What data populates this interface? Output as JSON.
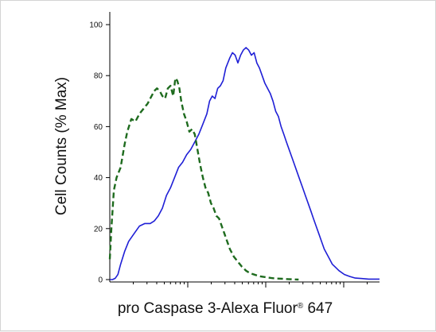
{
  "chart_data": {
    "type": "line",
    "title": "",
    "xlabel": "pro Caspase 3-Alexa Fluor",
    "xlabel_superscript": "®",
    "xlabel_suffix": " 647",
    "ylabel": "Cell Counts (% Max)",
    "ylim": [
      0,
      100
    ],
    "xlim": [
      0,
      1
    ],
    "x_scale": "log (unlabeled decades)",
    "y_ticks": [
      "0",
      "20",
      "40",
      "60",
      "80",
      "100"
    ],
    "grid": false,
    "legend": "none",
    "series": [
      {
        "color": "#1f1fd6",
        "line_style": "solid",
        "points": [
          [
            0.0,
            0
          ],
          [
            0.01,
            0
          ],
          [
            0.02,
            0.5
          ],
          [
            0.03,
            2
          ],
          [
            0.04,
            6
          ],
          [
            0.055,
            11
          ],
          [
            0.07,
            15
          ],
          [
            0.09,
            18
          ],
          [
            0.11,
            21
          ],
          [
            0.13,
            22
          ],
          [
            0.15,
            22
          ],
          [
            0.165,
            23
          ],
          [
            0.18,
            25
          ],
          [
            0.195,
            28
          ],
          [
            0.21,
            33
          ],
          [
            0.225,
            36
          ],
          [
            0.24,
            40
          ],
          [
            0.255,
            44
          ],
          [
            0.27,
            46
          ],
          [
            0.285,
            49
          ],
          [
            0.3,
            51
          ],
          [
            0.315,
            54
          ],
          [
            0.33,
            57
          ],
          [
            0.345,
            61
          ],
          [
            0.36,
            65
          ],
          [
            0.37,
            70
          ],
          [
            0.38,
            72
          ],
          [
            0.39,
            71
          ],
          [
            0.4,
            75
          ],
          [
            0.41,
            76
          ],
          [
            0.42,
            78
          ],
          [
            0.43,
            83
          ],
          [
            0.445,
            87
          ],
          [
            0.455,
            89
          ],
          [
            0.465,
            88
          ],
          [
            0.475,
            85
          ],
          [
            0.485,
            88
          ],
          [
            0.495,
            90
          ],
          [
            0.505,
            91
          ],
          [
            0.515,
            90
          ],
          [
            0.525,
            88
          ],
          [
            0.535,
            89
          ],
          [
            0.545,
            85
          ],
          [
            0.555,
            83
          ],
          [
            0.565,
            80
          ],
          [
            0.575,
            77
          ],
          [
            0.585,
            75
          ],
          [
            0.595,
            73
          ],
          [
            0.605,
            70
          ],
          [
            0.615,
            66
          ],
          [
            0.625,
            64
          ],
          [
            0.635,
            60
          ],
          [
            0.645,
            57
          ],
          [
            0.655,
            54
          ],
          [
            0.665,
            51
          ],
          [
            0.675,
            48
          ],
          [
            0.685,
            45
          ],
          [
            0.695,
            42
          ],
          [
            0.705,
            39
          ],
          [
            0.715,
            36
          ],
          [
            0.725,
            33
          ],
          [
            0.735,
            30
          ],
          [
            0.745,
            27
          ],
          [
            0.755,
            24
          ],
          [
            0.765,
            21
          ],
          [
            0.775,
            18
          ],
          [
            0.785,
            15
          ],
          [
            0.795,
            12
          ],
          [
            0.805,
            10
          ],
          [
            0.815,
            8
          ],
          [
            0.825,
            6
          ],
          [
            0.835,
            5
          ],
          [
            0.85,
            3.5
          ],
          [
            0.87,
            2
          ],
          [
            0.89,
            1.2
          ],
          [
            0.91,
            0.6
          ],
          [
            0.935,
            0.4
          ],
          [
            0.96,
            0.2
          ],
          [
            1.0,
            0.2
          ]
        ]
      },
      {
        "color": "#1e6b1e",
        "line_style": "dashed",
        "points": [
          [
            0.0,
            8
          ],
          [
            0.006,
            20
          ],
          [
            0.015,
            35
          ],
          [
            0.025,
            40
          ],
          [
            0.04,
            44
          ],
          [
            0.055,
            53
          ],
          [
            0.065,
            58
          ],
          [
            0.08,
            63
          ],
          [
            0.095,
            62
          ],
          [
            0.11,
            65
          ],
          [
            0.125,
            67
          ],
          [
            0.14,
            69
          ],
          [
            0.155,
            72
          ],
          [
            0.165,
            74
          ],
          [
            0.175,
            75
          ],
          [
            0.185,
            74
          ],
          [
            0.195,
            72
          ],
          [
            0.205,
            71
          ],
          [
            0.215,
            75
          ],
          [
            0.225,
            76
          ],
          [
            0.235,
            72
          ],
          [
            0.243,
            79
          ],
          [
            0.25,
            78
          ],
          [
            0.258,
            75
          ],
          [
            0.265,
            70
          ],
          [
            0.275,
            65
          ],
          [
            0.285,
            62
          ],
          [
            0.295,
            58
          ],
          [
            0.305,
            59
          ],
          [
            0.315,
            57
          ],
          [
            0.325,
            51
          ],
          [
            0.335,
            45
          ],
          [
            0.345,
            40
          ],
          [
            0.355,
            36
          ],
          [
            0.365,
            34
          ],
          [
            0.375,
            30
          ],
          [
            0.385,
            28
          ],
          [
            0.395,
            25
          ],
          [
            0.405,
            24
          ],
          [
            0.415,
            21
          ],
          [
            0.425,
            18
          ],
          [
            0.435,
            15
          ],
          [
            0.445,
            12
          ],
          [
            0.46,
            9
          ],
          [
            0.475,
            7
          ],
          [
            0.49,
            5
          ],
          [
            0.505,
            3.5
          ],
          [
            0.52,
            2.5
          ],
          [
            0.54,
            1.8
          ],
          [
            0.56,
            1.2
          ],
          [
            0.58,
            0.9
          ],
          [
            0.6,
            0.6
          ],
          [
            0.62,
            0.4
          ],
          [
            0.64,
            0.3
          ],
          [
            0.66,
            0.2
          ],
          [
            0.68,
            0.1
          ],
          [
            0.7,
            0
          ]
        ]
      }
    ]
  }
}
